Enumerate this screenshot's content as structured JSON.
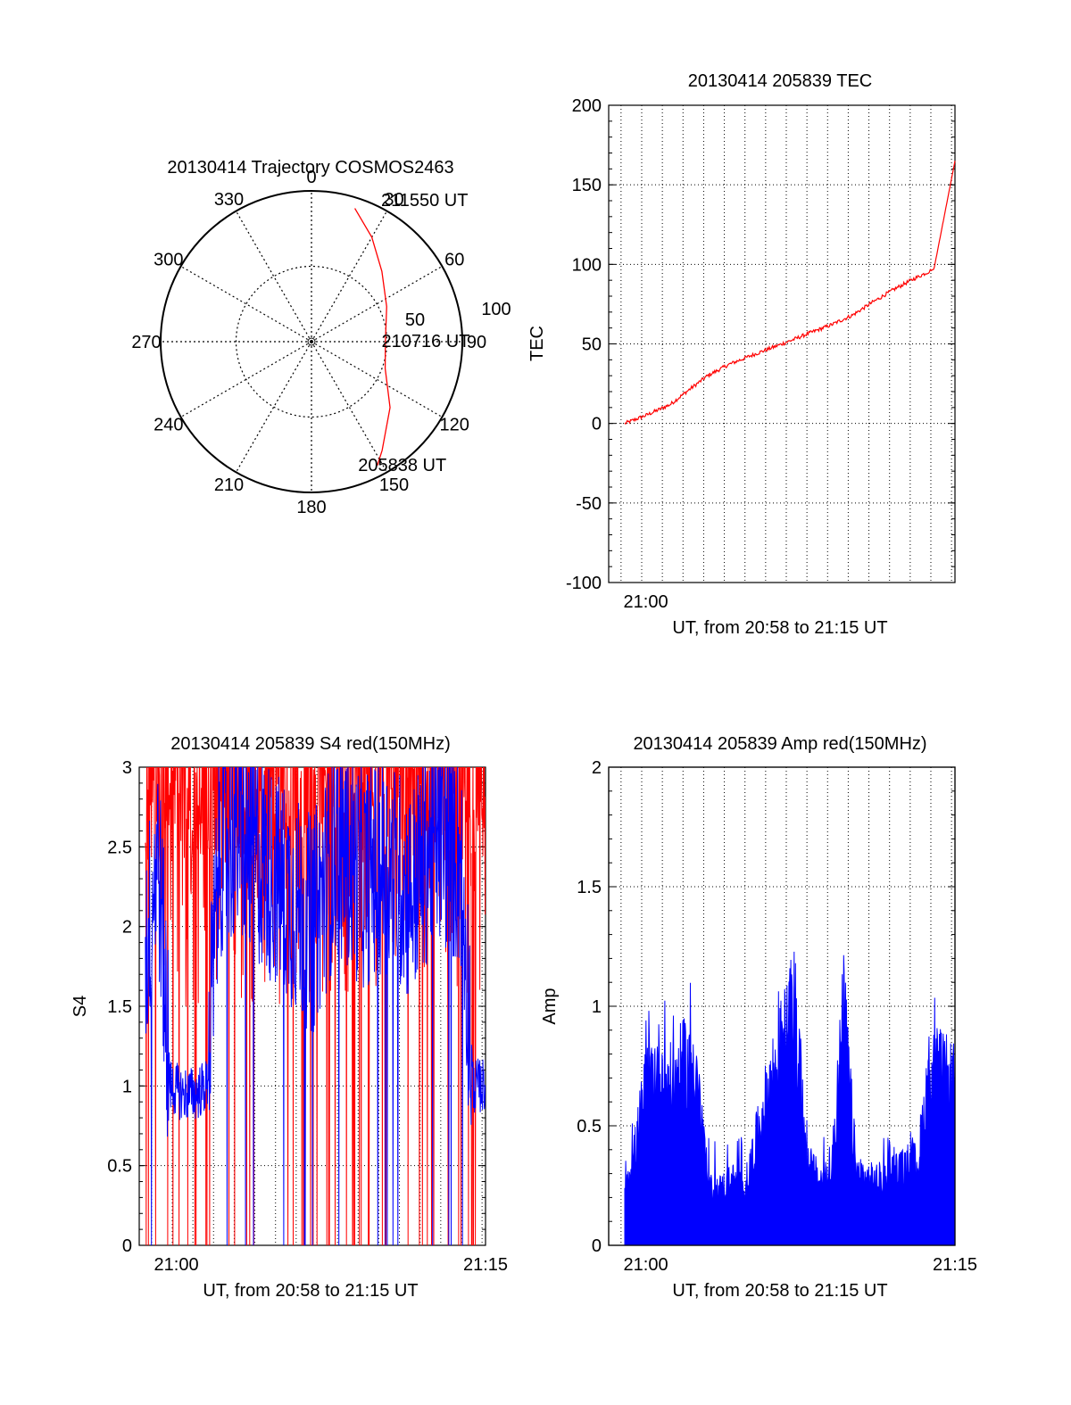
{
  "colors": {
    "red": "#ff0000",
    "blue": "#0000ff",
    "axis": "#000000",
    "grid": "#000000"
  },
  "chart_data": [
    {
      "type": "polar",
      "title": "20130414 Trajectory COSMOS2463",
      "angle_labels": [
        "0",
        "30",
        "60",
        "90",
        "120",
        "150",
        "180",
        "210",
        "240",
        "270",
        "300",
        "330"
      ],
      "radius_labels": [
        "50",
        "100"
      ],
      "r_max": 100,
      "trajectory": {
        "color": "red",
        "points": [
          {
            "az": 18,
            "el": 93
          },
          {
            "az": 30,
            "el": 80
          },
          {
            "az": 45,
            "el": 66
          },
          {
            "az": 65,
            "el": 55
          },
          {
            "az": 90,
            "el": 49
          },
          {
            "az": 110,
            "el": 52
          },
          {
            "az": 130,
            "el": 68
          },
          {
            "az": 147,
            "el": 86
          },
          {
            "az": 152,
            "el": 93
          }
        ]
      },
      "annotations": [
        {
          "text": "211550 UT",
          "az": 25,
          "el": 98
        },
        {
          "text": "210716 UT",
          "az": 90,
          "el": 50
        },
        {
          "text": "205838 UT",
          "az": 150,
          "el": 95
        }
      ]
    },
    {
      "type": "line",
      "title": "20130414 205839 TEC",
      "xlabel": "UT, from 20:58 to 21:15 UT",
      "ylabel": "TEC",
      "x_unit": "minutes after 20:58 UT",
      "xlim": [
        20.97,
        21.25
      ],
      "ylim": [
        -100,
        200
      ],
      "y_ticks": [
        -100,
        -50,
        0,
        50,
        100,
        150,
        200
      ],
      "x_ticks": [
        {
          "value": 21.0,
          "label": "21:00"
        }
      ],
      "grid": true,
      "series": [
        {
          "color": "red",
          "x": [
            20.983,
            21.0,
            21.02,
            21.033,
            21.05,
            21.067,
            21.083,
            21.1,
            21.117,
            21.133,
            21.15,
            21.167,
            21.183,
            21.2,
            21.217,
            21.225,
            21.233,
            21.25
          ],
          "y": [
            0,
            5,
            12,
            20,
            30,
            37,
            42,
            47,
            52,
            57,
            62,
            68,
            76,
            84,
            91,
            94,
            97,
            165
          ]
        }
      ]
    },
    {
      "type": "line",
      "title": "20130414 205839 S4 red(150MHz)",
      "xlabel": "UT, from 20:58 to 21:15 UT",
      "ylabel": "S4",
      "xlim": [
        20.97,
        21.25
      ],
      "ylim": [
        0,
        3
      ],
      "y_ticks": [
        "0",
        "0.5",
        "1",
        "1.5",
        "2",
        "2.5",
        "3"
      ],
      "x_ticks": [
        {
          "value": 21.0,
          "label": "21:00"
        },
        {
          "value": 21.25,
          "label": "21:15"
        }
      ],
      "grid": true,
      "series": [
        {
          "color": "red",
          "style": "dense noisy, mostly saturating near 3, frequent drops to 0"
        },
        {
          "color": "blue",
          "x": [
            20.975,
            20.985,
            20.995,
            21.005,
            21.015,
            21.025,
            21.035,
            21.05,
            21.07,
            21.09,
            21.11,
            21.13,
            21.15,
            21.17,
            21.19,
            21.21,
            21.23,
            21.24,
            21.25
          ],
          "y": [
            1.8,
            2.5,
            1.0,
            0.95,
            0.95,
            1.0,
            2.5,
            2.6,
            2.4,
            2.2,
            2.0,
            2.5,
            2.3,
            2.4,
            2.2,
            2.6,
            2.4,
            1.0,
            1.0
          ]
        }
      ]
    },
    {
      "type": "area",
      "title": "20130414 205839 Amp red(150MHz)",
      "xlabel": "UT, from 20:58 to 21:15 UT",
      "ylabel": "Amp",
      "xlim": [
        20.97,
        21.25
      ],
      "ylim": [
        0,
        2
      ],
      "y_ticks": [
        "0",
        "0.5",
        "1",
        "1.5",
        "2"
      ],
      "x_ticks": [
        {
          "value": 21.0,
          "label": "21:00"
        },
        {
          "value": 21.25,
          "label": "21:15"
        }
      ],
      "grid": true,
      "series": [
        {
          "color": "blue",
          "x": [
            20.983,
            20.99,
            21.0,
            21.01,
            21.02,
            21.03,
            21.04,
            21.05,
            21.06,
            21.07,
            21.08,
            21.1,
            21.12,
            21.13,
            21.14,
            21.15,
            21.16,
            21.17,
            21.18,
            21.19,
            21.2,
            21.21,
            21.22,
            21.23,
            21.24,
            21.25
          ],
          "y": [
            0.35,
            0.45,
            0.85,
            0.95,
            0.85,
            0.95,
            1.0,
            0.3,
            0.3,
            0.35,
            0.3,
            0.85,
            1.25,
            0.45,
            0.35,
            0.35,
            1.25,
            0.4,
            0.35,
            0.35,
            0.4,
            0.4,
            0.45,
            0.95,
            0.9,
            0.85
          ]
        }
      ]
    }
  ]
}
